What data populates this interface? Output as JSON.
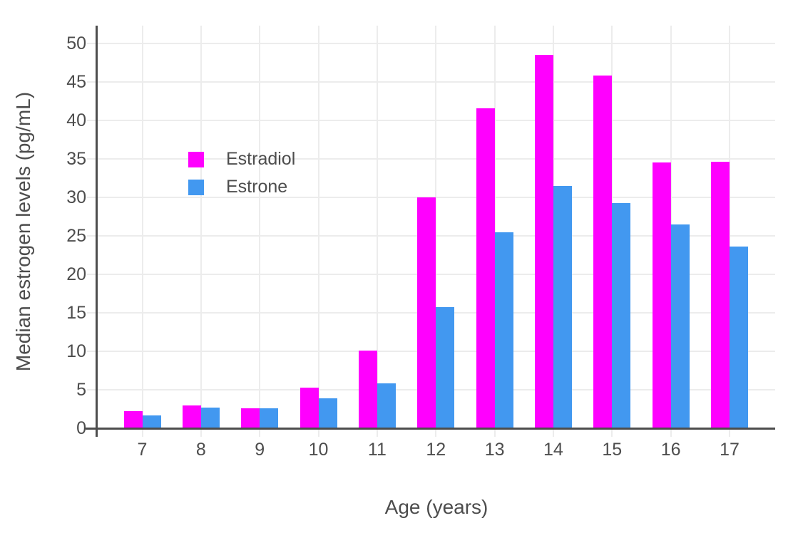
{
  "chart_data": {
    "type": "bar",
    "title": "",
    "xlabel": "Age (years)",
    "ylabel": "Median estrogen levels (pg/mL)",
    "categories": [
      "7",
      "8",
      "9",
      "10",
      "11",
      "12",
      "13",
      "14",
      "15",
      "16",
      "17"
    ],
    "series": [
      {
        "name": "Estradiol",
        "color": "#FF00FE",
        "values": [
          2.2,
          3.0,
          2.6,
          5.3,
          10.1,
          30.0,
          41.6,
          48.5,
          45.8,
          34.5,
          34.6
        ]
      },
      {
        "name": "Estrone",
        "color": "#4298F0",
        "values": [
          1.7,
          2.7,
          2.6,
          3.9,
          5.8,
          15.7,
          25.5,
          31.5,
          29.3,
          26.5,
          23.6
        ]
      }
    ],
    "ylim": [
      0,
      52.3
    ],
    "yticks": [
      0,
      5,
      10,
      15,
      20,
      25,
      30,
      35,
      40,
      45,
      50
    ],
    "grid": true,
    "legend_position": "inside-top-left",
    "colors": {
      "grid": "#ECECEC",
      "axis_line": "#4D4D4D",
      "text": "#4D4D4D",
      "background": "#FFFFFF"
    }
  }
}
